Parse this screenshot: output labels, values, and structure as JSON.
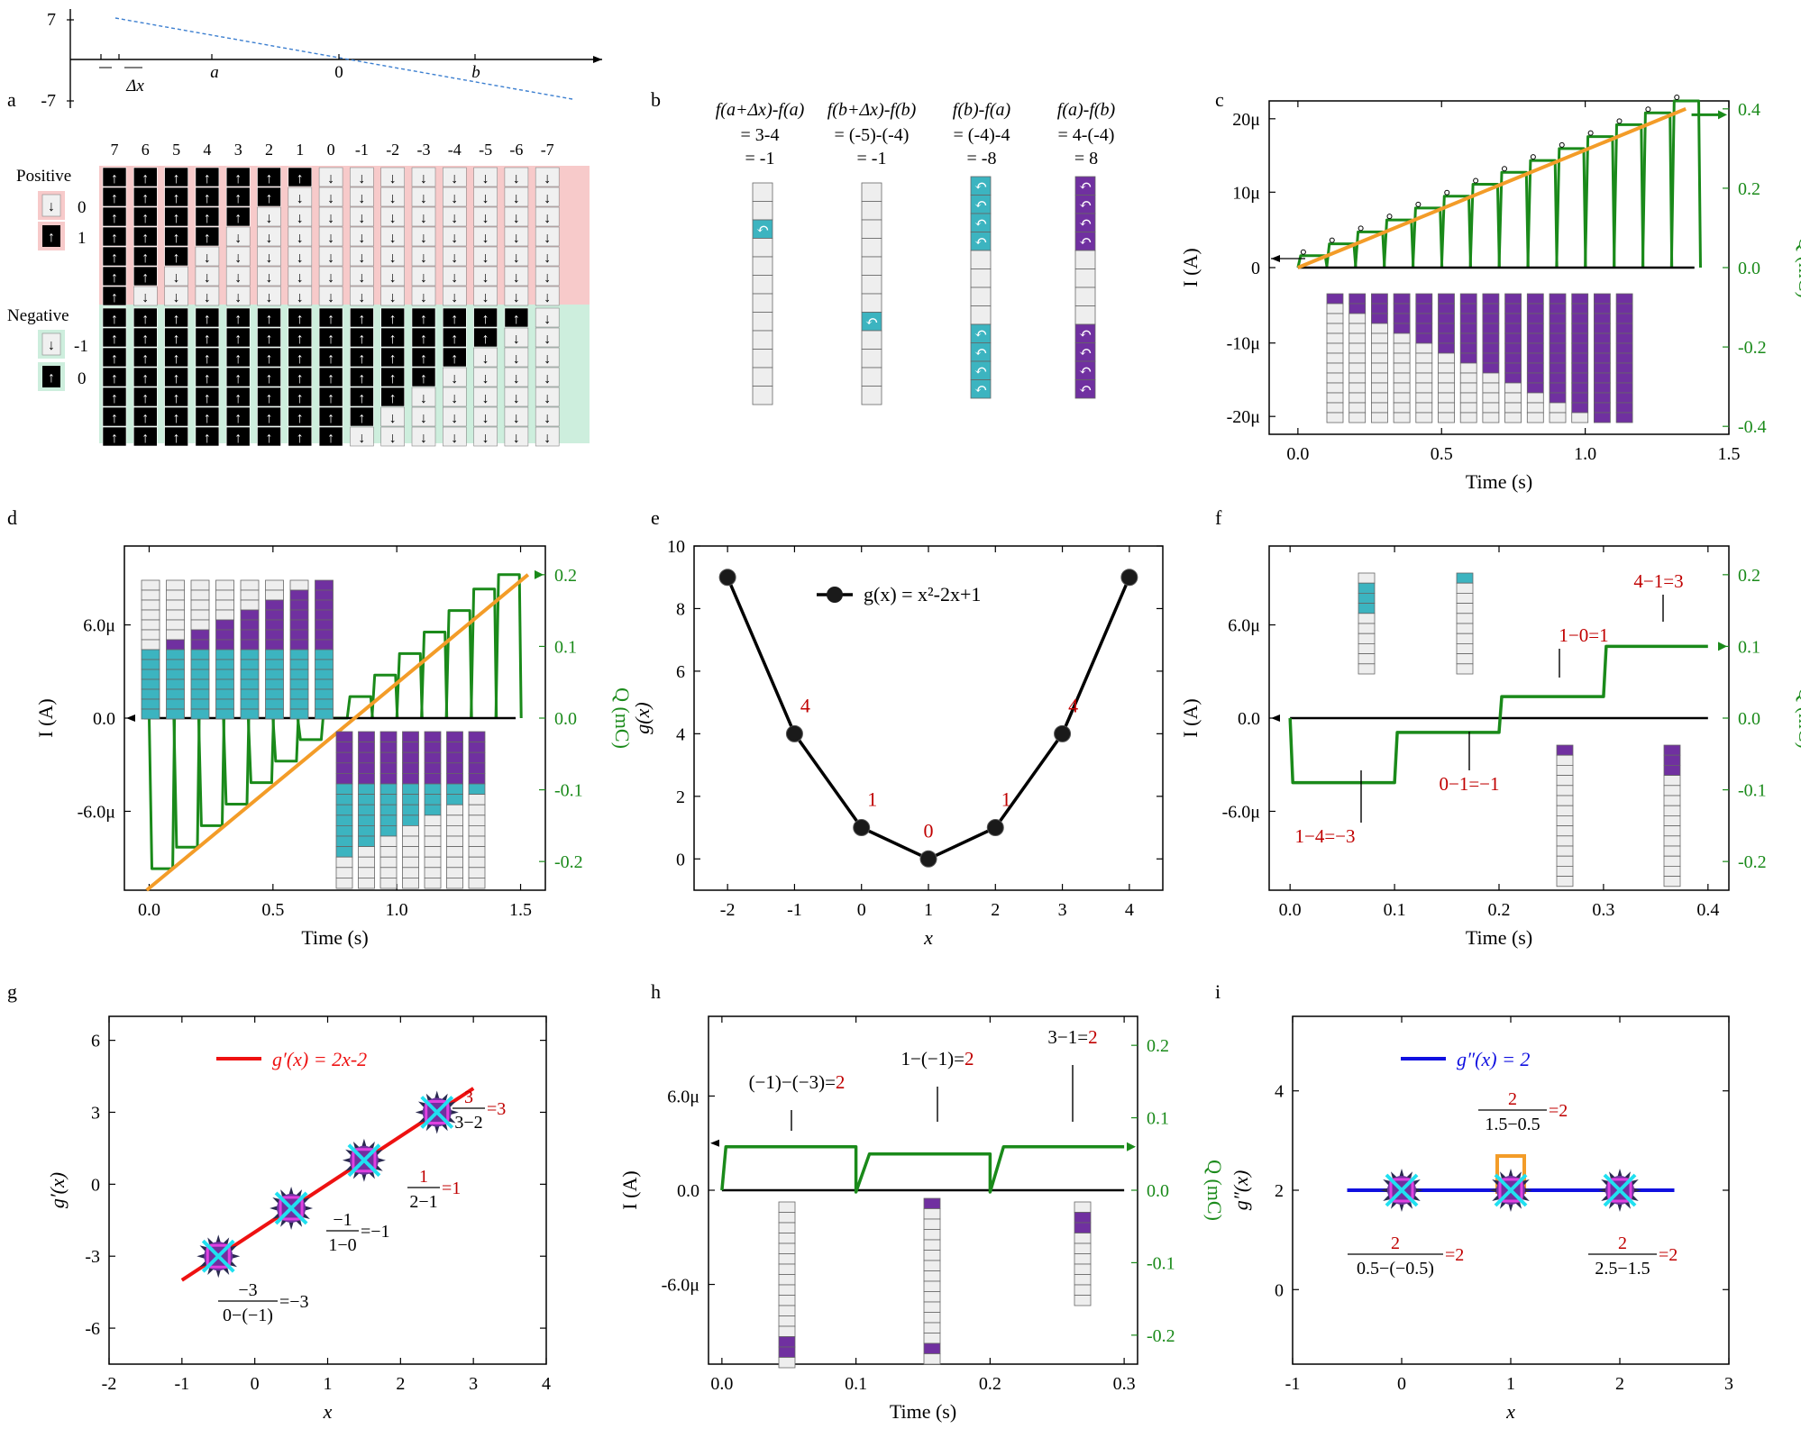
{
  "panel_letters": [
    "a",
    "b",
    "c",
    "d",
    "e",
    "f",
    "g",
    "h",
    "i"
  ],
  "colors": {
    "teal": "#3cb4c0",
    "purple": "#7030a0",
    "green": "#1a8a1a",
    "orange": "#f39c28",
    "red": "#c00000",
    "blue": "#1010e0",
    "cellgray": "#eeeeee",
    "pink": "#f7caca",
    "mint": "#cdeedd"
  },
  "panel_a": {
    "numberline": {
      "ytick_top": "7",
      "ytick_bottom": "-7",
      "labels": [
        "Δx",
        "a",
        "0",
        "b"
      ]
    },
    "columns": [
      "7",
      "6",
      "5",
      "4",
      "3",
      "2",
      "1",
      "0",
      "-1",
      "-2",
      "-3",
      "-4",
      "-5",
      "-6",
      "-7"
    ],
    "positive_label": "Positive",
    "negative_label": "Negative",
    "pos_legend": [
      "0",
      "1"
    ],
    "neg_legend": [
      "-1",
      "0"
    ]
  },
  "panel_b": {
    "columns": [
      {
        "formula": "f(a+Δx)-f(a)",
        "line2": "= 3-4",
        "line3": "= -1"
      },
      {
        "formula": "f(b+Δx)-f(b)",
        "line2": "= (-5)-(-4)",
        "line3": "= -1"
      },
      {
        "formula": "f(b)-f(a)",
        "line2": "= (-4)-4",
        "line3": "= -8"
      },
      {
        "formula": "f(a)-f(b)",
        "line2": "= 4-(-4)",
        "line3": "= 8"
      }
    ]
  },
  "chart_data": [
    {
      "panel": "c",
      "type": "line",
      "title": "",
      "xlabel": "Time (s)",
      "ylabel": "I (A)",
      "y2label": "Q (mC)",
      "xlim": [
        -0.1,
        1.5
      ],
      "ylim": [
        -2.2e-05,
        2.4e-05
      ],
      "y2lim": [
        -0.42,
        0.42
      ],
      "xticks": [
        "0.0",
        "0.5",
        "1.0",
        "1.5"
      ],
      "yticks": [
        "-20μ",
        "-10μ",
        "0",
        "10μ",
        "20μ"
      ],
      "y2ticks": [
        "-0.4",
        "-0.2",
        "0.0",
        "0.2",
        "0.4"
      ],
      "pulse_peaks_Q": [
        0.0,
        0.03,
        0.06,
        0.09,
        0.12,
        0.15,
        0.18,
        0.21,
        0.24,
        0.27,
        0.3,
        0.33,
        0.36,
        0.39
      ],
      "fit_line": {
        "x": [
          0.0,
          1.35
        ],
        "Q": [
          0.0,
          0.4
        ]
      }
    },
    {
      "panel": "d",
      "type": "line",
      "xlabel": "Time (s)",
      "ylabel": "I (A)",
      "y2label": "Q (mC)",
      "xlim": [
        -0.1,
        1.6
      ],
      "ylim": [
        -1.15e-05,
        1.15e-05
      ],
      "y2lim": [
        -0.24,
        0.24
      ],
      "xticks": [
        "0.0",
        "0.5",
        "1.0",
        "1.5"
      ],
      "yticks": [
        "-6.0μ",
        "0.0",
        "6.0μ"
      ],
      "y2ticks": [
        "-0.2",
        "-0.1",
        "0.0",
        "0.1",
        "0.2"
      ],
      "pulse_levels_Q": [
        -0.21,
        -0.18,
        -0.15,
        -0.12,
        -0.09,
        -0.06,
        -0.03,
        0.0,
        0.03,
        0.06,
        0.09,
        0.12,
        0.15,
        0.18,
        0.2
      ],
      "fit_line": {
        "x": [
          -0.01,
          1.53
        ],
        "Q": [
          -0.24,
          0.2
        ]
      }
    },
    {
      "panel": "e",
      "type": "line",
      "title": "",
      "xlabel": "x",
      "ylabel": "g(x)",
      "legend": "g(x) = x²-2x+1",
      "x": [
        -2,
        -1,
        0,
        1,
        2,
        3,
        4
      ],
      "y": [
        9,
        4,
        1,
        0,
        1,
        4,
        9
      ],
      "point_labels": [
        {
          "x": -1,
          "text": "4"
        },
        {
          "x": 0,
          "text": "1"
        },
        {
          "x": 1,
          "text": "0"
        },
        {
          "x": 2,
          "text": "1"
        },
        {
          "x": 3,
          "text": "4"
        }
      ],
      "xlim": [
        -2.5,
        4.5
      ],
      "ylim": [
        -1,
        10
      ],
      "xticks": [
        "-2",
        "-1",
        "0",
        "1",
        "2",
        "3",
        "4"
      ],
      "yticks": [
        "0",
        "2",
        "4",
        "6",
        "8",
        "10"
      ]
    },
    {
      "panel": "f",
      "type": "line",
      "xlabel": "Time (s)",
      "ylabel": "I (A)",
      "y2label": "Q (mC)",
      "xlim": [
        -0.02,
        0.42
      ],
      "ylim": [
        -1.15e-05,
        1.15e-05
      ],
      "y2lim": [
        -0.24,
        0.24
      ],
      "xticks": [
        "0.0",
        "0.1",
        "0.2",
        "0.3",
        "0.4"
      ],
      "yticks": [
        "-6.0μ",
        "0.0",
        "6.0μ"
      ],
      "y2ticks": [
        "-0.2",
        "-0.1",
        "0.0",
        "0.1",
        "0.2"
      ],
      "segments_Q": [
        {
          "x": [
            0.0,
            0.1
          ],
          "Q": -0.09
        },
        {
          "x": [
            0.1,
            0.2
          ],
          "Q": -0.02
        },
        {
          "x": [
            0.2,
            0.3
          ],
          "Q": 0.03
        },
        {
          "x": [
            0.3,
            0.4
          ],
          "Q": 0.1
        }
      ],
      "annotations": [
        "1−4=−3",
        "0−1=−1",
        "1−0=1",
        "4−1=3"
      ]
    },
    {
      "panel": "g",
      "type": "scatter",
      "xlabel": "x",
      "ylabel": "g′(x)",
      "legend": "g′(x) = 2x-2",
      "x": [
        -0.5,
        0.5,
        1.5,
        2.5
      ],
      "y": [
        -3,
        -1,
        1,
        3
      ],
      "line": {
        "x": [
          -1,
          3
        ],
        "y": [
          -4,
          4
        ]
      },
      "xlim": [
        -2,
        4
      ],
      "ylim": [
        -7.5,
        7
      ],
      "xticks": [
        "-2",
        "-1",
        "0",
        "1",
        "2",
        "3",
        "4"
      ],
      "yticks": [
        "-6",
        "-3",
        "0",
        "3",
        "6"
      ],
      "fractions": [
        {
          "num": "−3",
          "den": "0−(−1)",
          "res": "=−3"
        },
        {
          "num": "−1",
          "den": "1−0",
          "res": "=−1"
        },
        {
          "num": "1",
          "den": "2−1",
          "res": "=1"
        },
        {
          "num": "3",
          "den": "3−2",
          "res": "=3"
        }
      ]
    },
    {
      "panel": "h",
      "type": "line",
      "xlabel": "Time (s)",
      "ylabel": "I (A)",
      "y2label": "Q (mC)",
      "xlim": [
        -0.01,
        0.31
      ],
      "ylim": [
        -1.15e-05,
        1.15e-05
      ],
      "y2lim": [
        -0.24,
        0.24
      ],
      "xticks": [
        "0.0",
        "0.1",
        "0.2",
        "0.3"
      ],
      "yticks": [
        "-6.0μ",
        "0.0",
        "6.0μ"
      ],
      "y2ticks": [
        "-0.2",
        "-0.1",
        "0.0",
        "0.1",
        "0.2"
      ],
      "segments_Q": [
        {
          "x": [
            0.0,
            0.1
          ],
          "Q": 0.06
        },
        {
          "x": [
            0.1,
            0.2
          ],
          "Q": 0.05
        },
        {
          "x": [
            0.2,
            0.3
          ],
          "Q": 0.06
        }
      ],
      "annotations": [
        {
          "black": "(−1)−(−3)=",
          "red": "2"
        },
        {
          "black": "1−(−1)=",
          "red": "2"
        },
        {
          "black": "3−1=",
          "red": "2"
        }
      ]
    },
    {
      "panel": "i",
      "type": "scatter",
      "xlabel": "x",
      "ylabel": "g″(x)",
      "legend": "g″(x) = 2",
      "x": [
        0,
        1,
        2
      ],
      "y": [
        2,
        2,
        2
      ],
      "line": {
        "x": [
          -0.5,
          2.5
        ],
        "y": [
          2,
          2
        ]
      },
      "xlim": [
        -1,
        3
      ],
      "ylim": [
        -1.5,
        5.5
      ],
      "xticks": [
        "-1",
        "0",
        "1",
        "2",
        "3"
      ],
      "yticks": [
        "0",
        "2",
        "4"
      ],
      "fractions": [
        {
          "num": "2",
          "den": "0.5−(−0.5)",
          "res": "=2"
        },
        {
          "num": "2",
          "den": "1.5−0.5",
          "res": "=2"
        },
        {
          "num": "2",
          "den": "2.5−1.5",
          "res": "=2"
        }
      ]
    }
  ]
}
